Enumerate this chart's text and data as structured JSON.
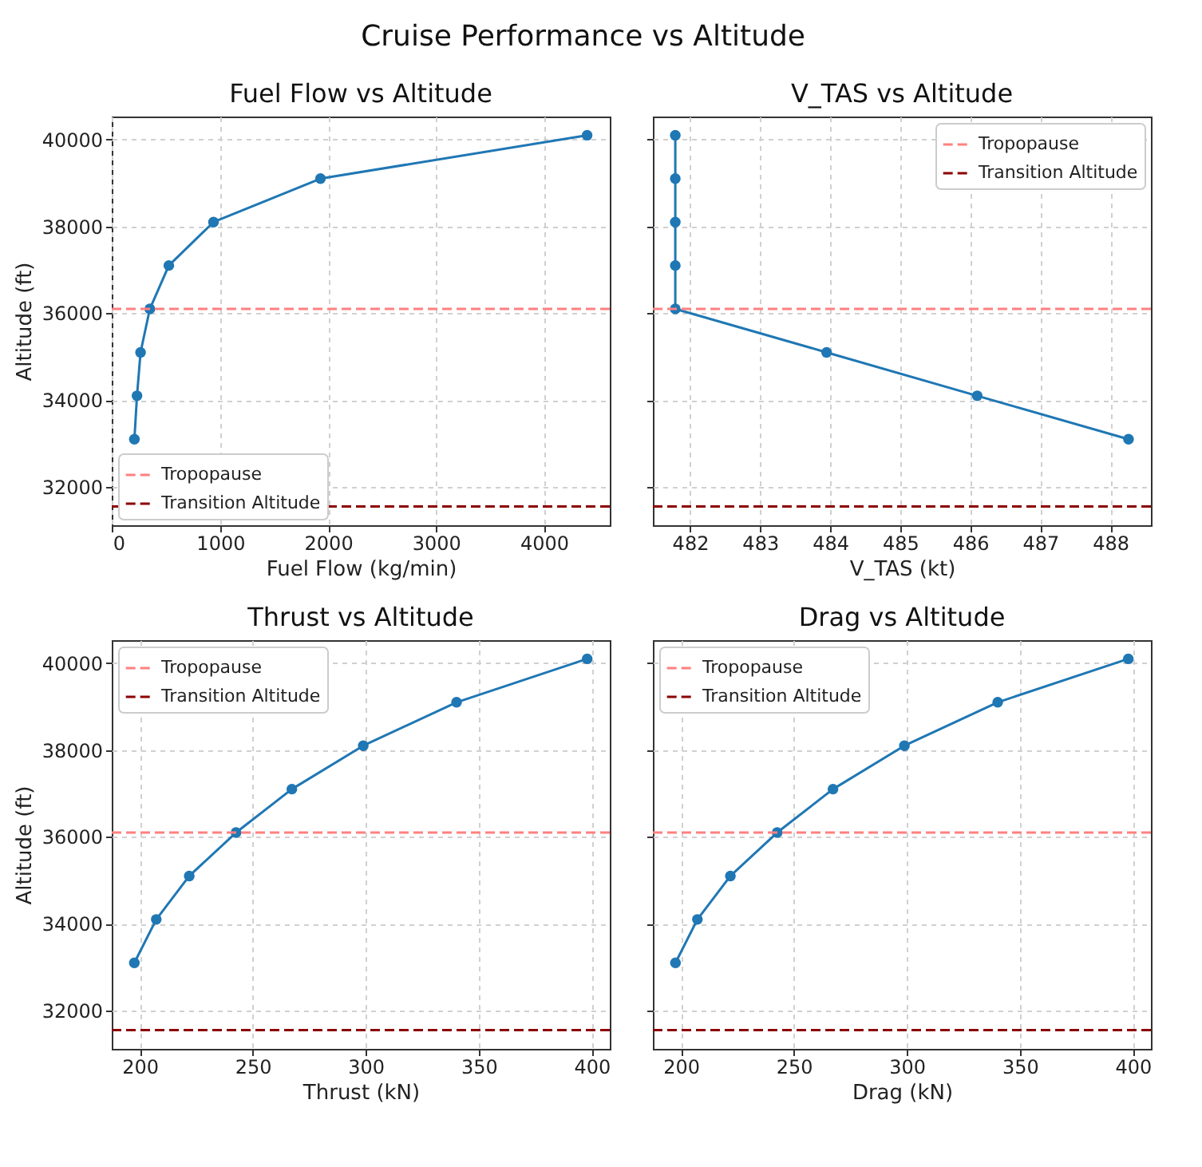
{
  "chart_data": [
    {
      "type": "line",
      "annotations": [
        "Cruise Performance vs Altitude"
      ],
      "title": "Fuel Flow vs Altitude",
      "xlabel": "Fuel Flow (kg/min)",
      "ylabel": "Altitude (ft)",
      "x": [
        205,
        229,
        262,
        348,
        524,
        938,
        1929,
        4400
      ],
      "series": [
        {
          "color": "#1f77b4",
          "values": [
            33100,
            34100,
            35100,
            36100,
            37100,
            38100,
            39100,
            40100
          ]
        }
      ],
      "xlim": [
        -5,
        4610
      ],
      "xticks": [
        0,
        1000,
        2000,
        3000,
        4000
      ],
      "ylim": [
        31120,
        40530
      ],
      "yticks": [
        32000,
        34000,
        36000,
        38000,
        40000
      ],
      "ref_lines": [
        {
          "axis": "y",
          "value": 36100,
          "label": "Tropopause",
          "color": "#ff8080",
          "line_style": "dashed"
        },
        {
          "axis": "y",
          "value": 31550,
          "label": "Transition Altitude",
          "color": "#8b0000",
          "line_style": "dashed"
        }
      ],
      "grid": true,
      "legend": "bottom left",
      "marker": "circle",
      "line_style": "solid"
    },
    {
      "type": "line",
      "title": "V_TAS vs Altitude",
      "xlabel": "V_TAS (kt)",
      "x": [
        488.26,
        486.1,
        483.95,
        481.79,
        481.79,
        481.79,
        481.79,
        481.79
      ],
      "series": [
        {
          "color": "#1f77b4",
          "values": [
            33100,
            34100,
            35100,
            36100,
            37100,
            38100,
            39100,
            40100
          ]
        }
      ],
      "xlim": [
        481.47,
        488.58
      ],
      "xticks": [
        482,
        483,
        484,
        485,
        486,
        487,
        488
      ],
      "ylim": [
        31120,
        40530
      ],
      "yticks": [
        32000,
        34000,
        36000,
        38000,
        40000
      ],
      "ref_lines": [
        {
          "axis": "y",
          "value": 36100,
          "label": "Tropopause",
          "color": "#ff8080",
          "line_style": "dashed"
        },
        {
          "axis": "y",
          "value": 31550,
          "label": "Transition Altitude",
          "color": "#8b0000",
          "line_style": "dashed"
        }
      ],
      "grid": true,
      "legend": "top right",
      "marker": "circle",
      "line_style": "solid",
      "tick_labels": "x"
    },
    {
      "type": "line",
      "title": "Thrust vs Altitude",
      "xlabel": "Thrust (kN)",
      "ylabel": "Altitude (ft)",
      "x": [
        197.6,
        207.3,
        221.9,
        242.6,
        267.3,
        298.9,
        340.2,
        398
      ],
      "series": [
        {
          "color": "#1f77b4",
          "values": [
            33100,
            34100,
            35100,
            36100,
            37100,
            38100,
            39100,
            40100
          ]
        }
      ],
      "xlim": [
        187.6,
        408
      ],
      "xticks": [
        200,
        250,
        300,
        350,
        400
      ],
      "ylim": [
        31120,
        40530
      ],
      "yticks": [
        32000,
        34000,
        36000,
        38000,
        40000
      ],
      "ref_lines": [
        {
          "axis": "y",
          "value": 36100,
          "label": "Tropopause",
          "color": "#ff8080",
          "line_style": "dashed"
        },
        {
          "axis": "y",
          "value": 31550,
          "label": "Transition Altitude",
          "color": "#8b0000",
          "line_style": "dashed"
        }
      ],
      "grid": true,
      "legend": "top left",
      "marker": "circle",
      "line_style": "solid"
    },
    {
      "type": "line",
      "title": "Drag vs Altitude",
      "xlabel": "Drag (kN)",
      "x": [
        197.6,
        207.3,
        221.9,
        242.6,
        267.3,
        298.9,
        340.2,
        398
      ],
      "series": [
        {
          "color": "#1f77b4",
          "values": [
            33100,
            34100,
            35100,
            36100,
            37100,
            38100,
            39100,
            40100
          ]
        }
      ],
      "xlim": [
        187.6,
        408
      ],
      "xticks": [
        200,
        250,
        300,
        350,
        400
      ],
      "ylim": [
        31120,
        40530
      ],
      "yticks": [
        32000,
        34000,
        36000,
        38000,
        40000
      ],
      "ref_lines": [
        {
          "axis": "y",
          "value": 36100,
          "label": "Tropopause",
          "color": "#ff8080",
          "line_style": "dashed"
        },
        {
          "axis": "y",
          "value": 31550,
          "label": "Transition Altitude",
          "color": "#8b0000",
          "line_style": "dashed"
        }
      ],
      "grid": true,
      "legend": "top left",
      "marker": "circle",
      "line_style": "solid",
      "tick_labels": "x"
    }
  ]
}
